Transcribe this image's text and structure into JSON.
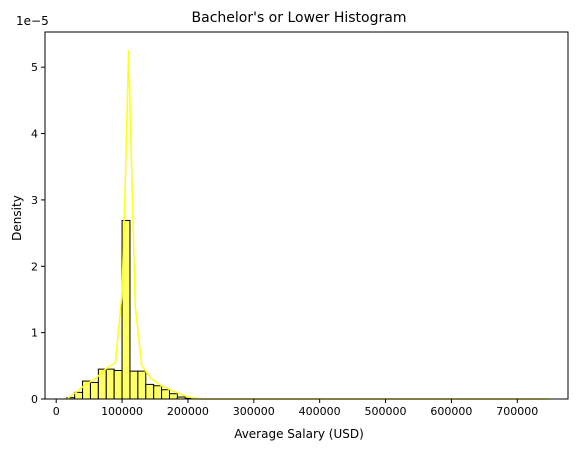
{
  "chart_data": {
    "type": "bar",
    "title": "Bachelor's or Lower Histogram",
    "xlabel": "Average Salary (USD)",
    "ylabel": "Density",
    "y_offset_label": "1e−5",
    "xlim": [
      -17000,
      777000
    ],
    "ylim": [
      0,
      5.53
    ],
    "x_ticks": [
      0,
      100000,
      200000,
      300000,
      400000,
      500000,
      600000,
      700000
    ],
    "x_tick_labels": [
      "0",
      "100000",
      "200000",
      "300000",
      "400000",
      "500000",
      "600000",
      "700000"
    ],
    "y_ticks": [
      0,
      1,
      2,
      3,
      4,
      5
    ],
    "y_tick_labels": [
      "0",
      "1",
      "2",
      "3",
      "4",
      "5"
    ],
    "bin_width": 12000,
    "bins": [
      {
        "x0": 16000,
        "x1": 28000,
        "density": 0.02
      },
      {
        "x0": 28000,
        "x1": 40000,
        "density": 0.1
      },
      {
        "x0": 40000,
        "x1": 52000,
        "density": 0.27
      },
      {
        "x0": 52000,
        "x1": 64000,
        "density": 0.25
      },
      {
        "x0": 64000,
        "x1": 76000,
        "density": 0.45
      },
      {
        "x0": 76000,
        "x1": 88000,
        "density": 0.45
      },
      {
        "x0": 88000,
        "x1": 100000,
        "density": 0.43
      },
      {
        "x0": 100000,
        "x1": 112000,
        "density": 2.69
      },
      {
        "x0": 112000,
        "x1": 124000,
        "density": 0.42
      },
      {
        "x0": 124000,
        "x1": 136000,
        "density": 0.42
      },
      {
        "x0": 136000,
        "x1": 148000,
        "density": 0.22
      },
      {
        "x0": 148000,
        "x1": 160000,
        "density": 0.2
      },
      {
        "x0": 160000,
        "x1": 172000,
        "density": 0.14
      },
      {
        "x0": 172000,
        "x1": 184000,
        "density": 0.08
      },
      {
        "x0": 184000,
        "x1": 196000,
        "density": 0.03
      },
      {
        "x0": 196000,
        "x1": 208000,
        "density": 0.01
      }
    ],
    "kde": {
      "x": [
        16000,
        30000,
        45000,
        60000,
        75000,
        90000,
        100000,
        105000,
        110000,
        115000,
        120000,
        130000,
        145000,
        160000,
        175000,
        190000,
        200000,
        220000,
        300000,
        400000,
        500000,
        600000,
        700000,
        750000
      ],
      "y": [
        0.0,
        0.1,
        0.22,
        0.31,
        0.45,
        0.55,
        1.6,
        3.3,
        5.25,
        3.3,
        1.4,
        0.5,
        0.3,
        0.2,
        0.13,
        0.07,
        0.03,
        0.0,
        0.0,
        0.0,
        0.0,
        0.0,
        0.0,
        0.0
      ]
    },
    "grid": false,
    "legend": "none",
    "colors": {
      "bar_fill": "#FFFF66",
      "bar_edge": "#000000",
      "kde_line": "#FFFF1F",
      "axes": "#000000",
      "background": "#ffffff"
    }
  }
}
